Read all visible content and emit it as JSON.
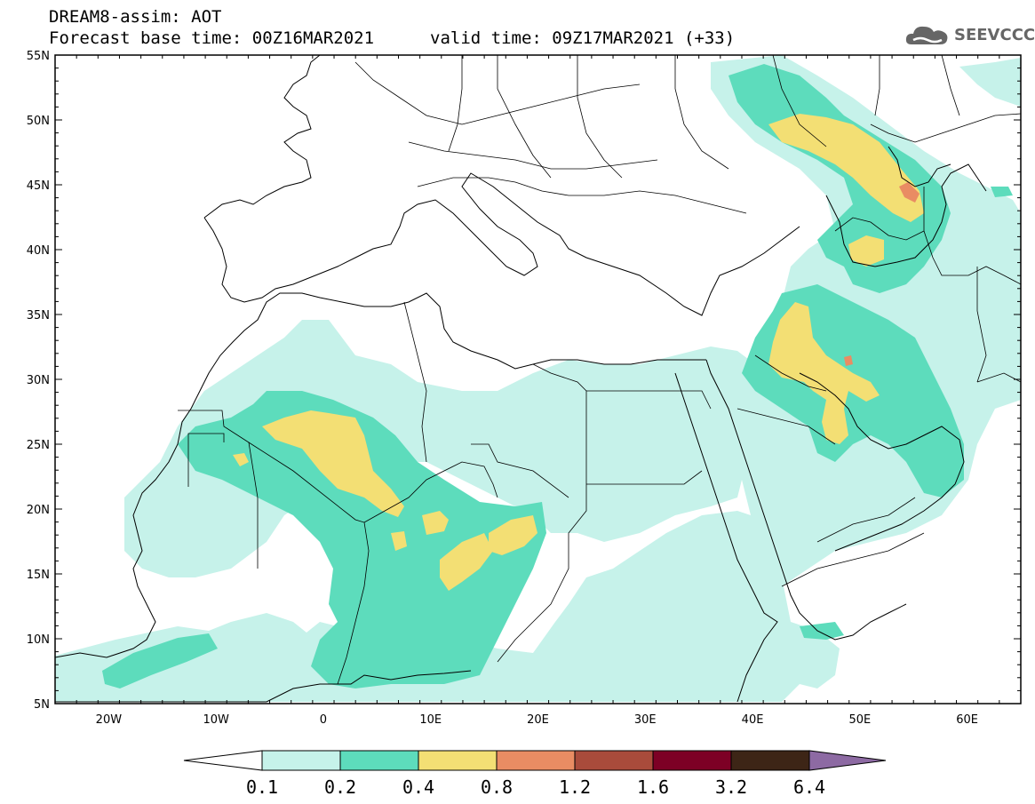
{
  "header": {
    "line1": "DREAM8-assim: AOT",
    "line2": "Forecast base time: 00Z16MAR2021",
    "valid": "valid time: 09Z17MAR2021 (+33)"
  },
  "logo": {
    "text": "SEEVCCC",
    "icon": "cloud-logo-icon"
  },
  "map": {
    "lon_range": [
      -25,
      65
    ],
    "lat_range": [
      5,
      55
    ],
    "lon_ticks": [
      "20W",
      "10W",
      "0",
      "10E",
      "20E",
      "30E",
      "40E",
      "50E",
      "60E"
    ],
    "lat_ticks": [
      "55N",
      "50N",
      "45N",
      "40N",
      "35N",
      "30N",
      "25N",
      "20N",
      "15N",
      "10N",
      "5N"
    ]
  },
  "colorbar": {
    "labels": [
      "0.1",
      "0.2",
      "0.4",
      "0.8",
      "1.2",
      "1.6",
      "3.2",
      "6.4"
    ],
    "colors": [
      "#ffffff",
      "#c6f2ea",
      "#5ddcbc",
      "#f3df74",
      "#e98c63",
      "#a94b3b",
      "#7d0025",
      "#3d2516",
      "#8d6aa3"
    ]
  },
  "legend_colors": {
    "low": "#c6f2ea",
    "medium": "#5ddcbc",
    "high": "#f3df74",
    "very_high": "#e98c63"
  }
}
